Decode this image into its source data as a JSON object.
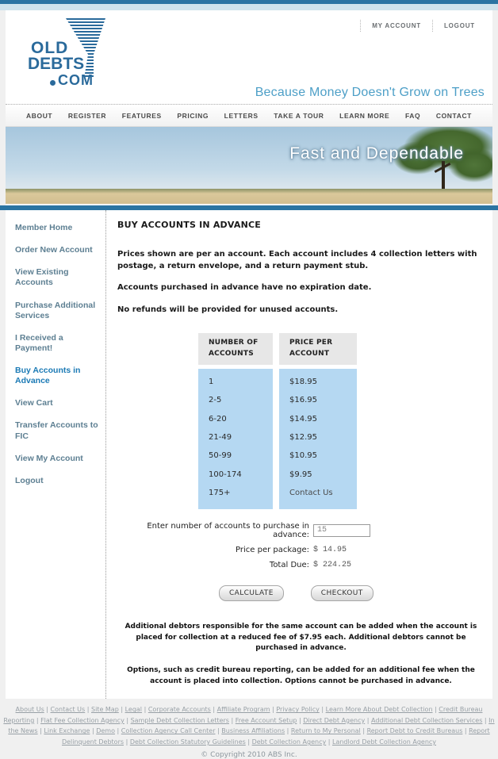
{
  "header": {
    "my_account_label": "MY ACCOUNT",
    "logout_label": "LOGOUT",
    "logo": {
      "word1": "OLD",
      "word2": "DEBTS",
      "word3": "COM"
    },
    "tagline": "Because Money Doesn't Grow on Trees"
  },
  "nav": {
    "items": [
      "ABOUT",
      "REGISTER",
      "FEATURES",
      "PRICING",
      "LETTERS",
      "TAKE A TOUR",
      "LEARN MORE",
      "FAQ",
      "CONTACT"
    ]
  },
  "hero": {
    "title": "Fast and Dependable"
  },
  "sidebar": {
    "items": [
      {
        "label": "Member Home",
        "active": false
      },
      {
        "label": "Order New Account",
        "active": false
      },
      {
        "label": "View Existing Accounts",
        "active": false
      },
      {
        "label": "Purchase Additional Services",
        "active": false
      },
      {
        "label": "I Received a Payment!",
        "active": false
      },
      {
        "label": "Buy Accounts in Advance",
        "active": true
      },
      {
        "label": "View Cart",
        "active": false
      },
      {
        "label": "Transfer Accounts to FIC",
        "active": false
      },
      {
        "label": "View My Account",
        "active": false
      },
      {
        "label": "Logout",
        "active": false
      }
    ]
  },
  "main": {
    "title": "BUY ACCOUNTS IN ADVANCE",
    "paragraphs": [
      "Prices shown are per an account. Each account includes 4 collection letters with postage, a return envelope, and a return payment stub.",
      "Accounts purchased in advance have no expiration date.",
      "No refunds will be provided for unused accounts."
    ],
    "table": {
      "headers": [
        "NUMBER OF ACCOUNTS",
        "PRICE PER ACCOUNT"
      ],
      "rows": [
        [
          "1",
          "$18.95"
        ],
        [
          "2-5",
          "$16.95"
        ],
        [
          "6-20",
          "$14.95"
        ],
        [
          "21-49",
          "$12.95"
        ],
        [
          "50-99",
          "$10.95"
        ],
        [
          "100-174",
          "$9.95"
        ],
        [
          "175+",
          "Contact Us"
        ]
      ]
    },
    "form": {
      "quantity_label": "Enter number of accounts to purchase in advance:",
      "quantity_value": "15",
      "price_per_package_label": "Price per package:",
      "price_per_package_value": "$ 14.95",
      "total_due_label": "Total Due:",
      "total_due_value": "$ 224.25"
    },
    "buttons": {
      "calculate": "CALCULATE",
      "checkout": "CHECKOUT"
    },
    "notes": [
      "Additional debtors responsible for the same account can be added when the account is placed for collection at a reduced fee of $7.95 each. Additional debtors cannot be purchased in advance.",
      "Options, such as credit bureau reporting, can be added for an additional fee when the account is placed into collection. Options cannot be purchased in advance."
    ]
  },
  "footer": {
    "links": [
      "About Us",
      "Contact Us",
      "Site Map",
      "Legal",
      "Corporate Accounts",
      "Affiliate Program",
      "Privacy Policy",
      "Learn More About Debt Collection",
      "Credit Bureau Reporting",
      "Flat Fee Collection Agency",
      "Sample Debt Collection Letters",
      "Free Account Setup",
      "Direct Debt Agency",
      "Additional Debt Collection Services",
      "In the News",
      "Link Exchange",
      "Demo",
      "Collection Agency Call Center",
      "Business Affiliations",
      "Return to My Personal",
      "Report Debt to Credit Bureaus",
      "Report Delinquent Debtors",
      "Debt Collection Statutory Guidelines",
      "Debt Collection Agency",
      "Landlord Debt Collection Agency"
    ],
    "copyright": "© Copyright 2010 ABS Inc."
  },
  "colors": {
    "top_bar": "#2b74a2",
    "top_strip": "#cfe3ec",
    "accent_blue": "#1b7ab5",
    "tagline_blue": "#4d9fc7",
    "sidebar_text": "#5d7f92",
    "table_header_bg": "#e7e7e7",
    "table_body_bg": "#b5d8f2"
  }
}
